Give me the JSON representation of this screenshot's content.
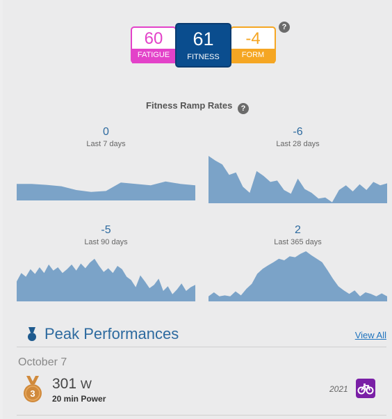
{
  "metrics": {
    "fatigue": {
      "value": "60",
      "label": "FATIGUE",
      "color": "#e342c9"
    },
    "fitness": {
      "value": "61",
      "label": "FITNESS",
      "color": "#0a4d8e"
    },
    "form": {
      "value": "-4",
      "label": "FORM",
      "color": "#f5a623"
    },
    "help_icon": "question-circle-icon"
  },
  "ramp": {
    "title": "Fitness Ramp Rates",
    "fill_color": "#7ba3c8",
    "panels": [
      {
        "value": "0",
        "label": "Last 7 days",
        "series": [
          0.35,
          0.35,
          0.33,
          0.3,
          0.22,
          0.18,
          0.2,
          0.38,
          0.35,
          0.32,
          0.4,
          0.35,
          0.32
        ]
      },
      {
        "value": "-6",
        "label": "Last 28 days",
        "series": [
          1.0,
          0.9,
          0.82,
          0.6,
          0.65,
          0.35,
          0.22,
          0.68,
          0.58,
          0.45,
          0.48,
          0.28,
          0.2,
          0.52,
          0.3,
          0.22,
          0.1,
          0.12,
          0.02,
          0.28,
          0.38,
          0.25,
          0.4,
          0.28,
          0.45,
          0.38,
          0.42
        ]
      },
      {
        "value": "-5",
        "label": "Last 90 days",
        "series": [
          0.42,
          0.6,
          0.52,
          0.68,
          0.58,
          0.72,
          0.6,
          0.78,
          0.65,
          0.72,
          0.6,
          0.68,
          0.78,
          0.65,
          0.8,
          0.7,
          0.82,
          0.9,
          0.75,
          0.62,
          0.7,
          0.6,
          0.75,
          0.68,
          0.52,
          0.45,
          0.3,
          0.55,
          0.42,
          0.28,
          0.35,
          0.48,
          0.22,
          0.32,
          0.15,
          0.25,
          0.38,
          0.22,
          0.3,
          0.35
        ]
      },
      {
        "value": "2",
        "label": "Last 365 days",
        "series": [
          0.1,
          0.18,
          0.1,
          0.12,
          0.1,
          0.2,
          0.12,
          0.25,
          0.35,
          0.55,
          0.65,
          0.72,
          0.78,
          0.85,
          0.82,
          0.9,
          0.88,
          0.95,
          1.0,
          0.92,
          0.85,
          0.78,
          0.62,
          0.45,
          0.3,
          0.22,
          0.15,
          0.22,
          0.1,
          0.18,
          0.15,
          0.1,
          0.16,
          0.1
        ]
      }
    ]
  },
  "peak": {
    "icon": "medal-icon",
    "title": "Peak Performances",
    "view_all": "View All",
    "date": "October 7",
    "rank": "3",
    "value": "301",
    "unit": "W",
    "label": "20 min Power",
    "year": "2021",
    "sport_icon": "bike-icon",
    "medal_color": "#d08a3c",
    "sport_color": "#7a1fa6"
  }
}
